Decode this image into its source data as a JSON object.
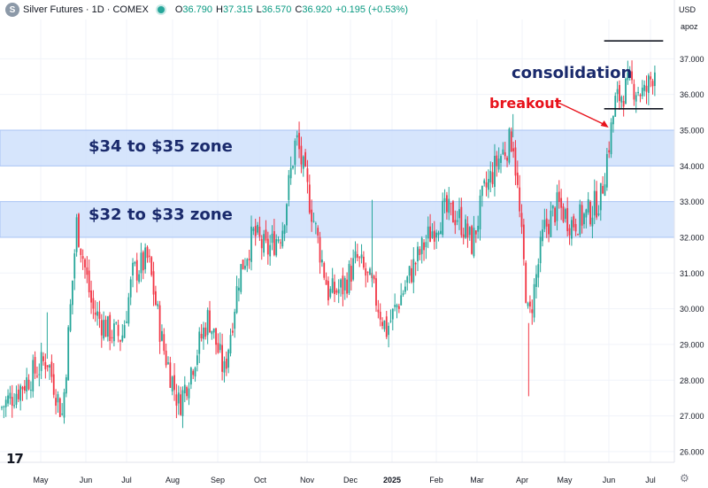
{
  "header": {
    "logo_glyph": "S",
    "title": "Silver Futures · 1D · COMEX",
    "o_label": "O",
    "o": "36.790",
    "h_label": "H",
    "h": "37.315",
    "l_label": "L",
    "l": "36.570",
    "c_label": "C",
    "c": "36.920",
    "change": "+0.195 (+0.53%)"
  },
  "price_scale": {
    "currency": "USD",
    "mode": "apoz"
  },
  "brand": "17",
  "annotations": {
    "zone_upper_label": "$34 to $35 zone",
    "zone_lower_label": "$32 to $33 zone",
    "breakout_label": "breakout",
    "consolidation_label": "consolidation"
  },
  "colors": {
    "up": "#26a69a",
    "down": "#f23645",
    "zone_fill": "#cfe0fc",
    "zone_edge": "#a9c4f5",
    "label_navy": "#1a2a6c",
    "breakout_red": "#e8121b",
    "grid": "#f0f3fa"
  },
  "chart_data": {
    "type": "candlestick",
    "title": "Silver Futures · 1D · COMEX",
    "ylim": [
      25.7,
      38.1
    ],
    "y_ticks": [
      "26.000",
      "27.000",
      "28.000",
      "29.000",
      "30.000",
      "31.000",
      "32.000",
      "33.000",
      "34.000",
      "35.000",
      "36.000",
      "37.000"
    ],
    "x_ticks": [
      "May",
      "Jun",
      "Jul",
      "Aug",
      "Sep",
      "Oct",
      "Nov",
      "Dec",
      "2025",
      "Feb",
      "Mar",
      "Apr",
      "May",
      "Jun",
      "Jul"
    ],
    "bold_x_ticks": [
      "2025"
    ],
    "price_path": [
      [
        "Apr 2024",
        27.2
      ],
      [
        "early May 2024",
        28.6
      ],
      [
        "mid May 2024",
        27.0
      ],
      [
        "late May 2024",
        32.4
      ],
      [
        "early Jun 2024",
        30.0
      ],
      [
        "mid Jun 2024",
        29.4
      ],
      [
        "late Jun 2024",
        29.2
      ],
      [
        "early Jul 2024",
        31.0
      ],
      [
        "mid Jul 2024",
        31.4
      ],
      [
        "late Jul 2024",
        29.0
      ],
      [
        "early Aug 2024",
        27.3
      ],
      [
        "mid Aug 2024",
        28.6
      ],
      [
        "late Aug 2024",
        29.8
      ],
      [
        "early Sep 2024",
        28.2
      ],
      [
        "mid Sep 2024",
        31.0
      ],
      [
        "late Sep 2024",
        32.1
      ],
      [
        "early Oct 2024",
        31.6
      ],
      [
        "mid Oct 2024",
        32.2
      ],
      [
        "late Oct 2024",
        34.8
      ],
      [
        "early Nov 2024",
        32.5
      ],
      [
        "mid Nov 2024",
        30.4
      ],
      [
        "late Nov 2024",
        30.6
      ],
      [
        "early Dec 2024",
        31.4
      ],
      [
        "mid Dec 2024",
        30.6
      ],
      [
        "late Dec 2024",
        29.4
      ],
      [
        "early Jan 2025",
        30.2
      ],
      [
        "mid Jan 2025",
        31.2
      ],
      [
        "late Jan 2025",
        32.0
      ],
      [
        "early Feb 2025",
        32.7
      ],
      [
        "mid Feb 2025",
        32.6
      ],
      [
        "late Feb 2025",
        31.8
      ],
      [
        "early Mar 2025",
        33.2
      ],
      [
        "mid Mar 2025",
        34.2
      ],
      [
        "late Mar 2025",
        34.8
      ],
      [
        "early Apr 2025",
        29.6
      ],
      [
        "mid Apr 2025",
        32.2
      ],
      [
        "late Apr 2025",
        32.9
      ],
      [
        "early May 2025",
        32.4
      ],
      [
        "mid May 2025",
        32.6
      ],
      [
        "late May 2025",
        33.1
      ],
      [
        "early Jun 2025",
        35.8
      ],
      [
        "mid Jun 2025",
        36.3
      ],
      [
        "late Jun 2025",
        36.0
      ],
      [
        "early Jul 2025",
        36.9
      ]
    ],
    "spikes": [
      {
        "date": "early Apr 2025",
        "low": 27.55
      },
      {
        "date": "late Mar 2025",
        "high": 35.45
      },
      {
        "date": "early May 2024",
        "high": 29.9
      },
      {
        "date": "mid Dec 2024",
        "high": 33.05
      }
    ],
    "bands": [
      {
        "label": "$34 to $35 zone",
        "y0": 34.0,
        "y1": 35.0
      },
      {
        "label": "$32 to $33 zone",
        "y0": 32.0,
        "y1": 33.0
      }
    ],
    "consolidation_lines": {
      "date_range": [
        "late May 2025",
        "early Jul 2025"
      ],
      "upper": 37.5,
      "lower": 35.6
    },
    "breakout_arrow": {
      "label": "breakout",
      "points_to": [
        "late May 2025",
        35.0
      ]
    }
  }
}
